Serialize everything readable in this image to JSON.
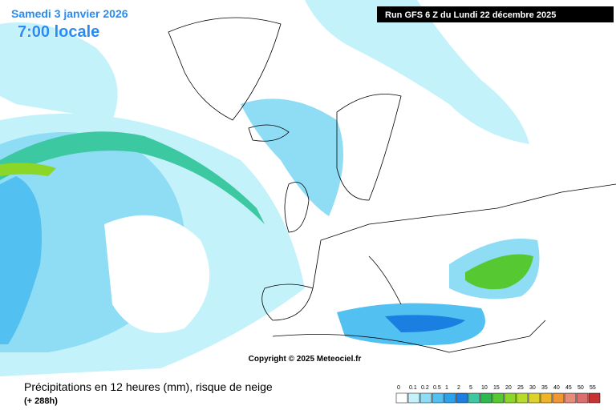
{
  "header": {
    "date": "Samedi 3 janvier 2026",
    "time": "7:00 locale",
    "run": "Run GFS 6 Z du Lundi 22 décembre 2025"
  },
  "map": {
    "copyright": "Copyright © 2025 Meteociel.fr"
  },
  "footer": {
    "title": "Précipitations en 12 heures (mm), risque de neige",
    "lead": "(+ 288h)"
  },
  "legend": {
    "levels": [
      {
        "value": 0,
        "color": "#ffffff"
      },
      {
        "value": 0.1,
        "color": "#c4f2fb"
      },
      {
        "value": 0.2,
        "color": "#8fdcf5"
      },
      {
        "value": 0.5,
        "color": "#52c0f0"
      },
      {
        "value": 1,
        "color": "#2aa2ec"
      },
      {
        "value": 2,
        "color": "#1a7fe0"
      },
      {
        "value": 5,
        "color": "#3cc8a0"
      },
      {
        "value": 10,
        "color": "#2fb850"
      },
      {
        "value": 15,
        "color": "#56c832"
      },
      {
        "value": 20,
        "color": "#8cd628"
      },
      {
        "value": 25,
        "color": "#b4dc28"
      },
      {
        "value": 30,
        "color": "#dcd228"
      },
      {
        "value": 35,
        "color": "#f0b428"
      },
      {
        "value": 40,
        "color": "#f09632"
      },
      {
        "value": 45,
        "color": "#e68c78"
      },
      {
        "value": 50,
        "color": "#dc6e6e"
      },
      {
        "value": 55,
        "color": "#c83232"
      }
    ]
  }
}
